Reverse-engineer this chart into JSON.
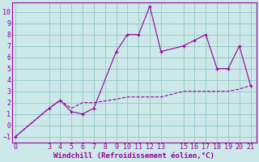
{
  "xlabel": "Windchill (Refroidissement éolien,°C)",
  "bg_color": "#cce8e8",
  "grid_color": "#99cccc",
  "line_color": "#990099",
  "x_ticks": [
    0,
    3,
    4,
    5,
    6,
    7,
    8,
    9,
    10,
    11,
    12,
    13,
    15,
    16,
    17,
    18,
    19,
    20,
    21
  ],
  "y_ticks": [
    -1,
    0,
    1,
    2,
    3,
    4,
    5,
    6,
    7,
    8,
    9,
    10
  ],
  "ylim": [
    -1.5,
    10.8
  ],
  "xlim": [
    -0.3,
    21.5
  ],
  "line1_x": [
    0,
    3,
    4,
    5,
    6,
    7,
    9,
    10,
    11,
    12,
    13,
    15,
    16,
    17,
    18,
    19,
    20,
    21
  ],
  "line1_y": [
    -1,
    1.5,
    2.2,
    1.2,
    1.0,
    1.5,
    6.5,
    8.0,
    8.0,
    10.5,
    6.5,
    7.0,
    7.5,
    8.0,
    5.0,
    5.0,
    7.0,
    3.5
  ],
  "line2_x": [
    0,
    3,
    4,
    5,
    6,
    7,
    9,
    10,
    11,
    12,
    13,
    15,
    16,
    17,
    18,
    19,
    20,
    21
  ],
  "line2_y": [
    -1,
    1.5,
    2.2,
    1.5,
    2.0,
    2.0,
    2.3,
    2.5,
    2.5,
    2.5,
    2.5,
    3.0,
    3.0,
    3.0,
    3.0,
    3.0,
    3.2,
    3.5
  ],
  "tick_fontsize": 6,
  "xlabel_fontsize": 6.5
}
